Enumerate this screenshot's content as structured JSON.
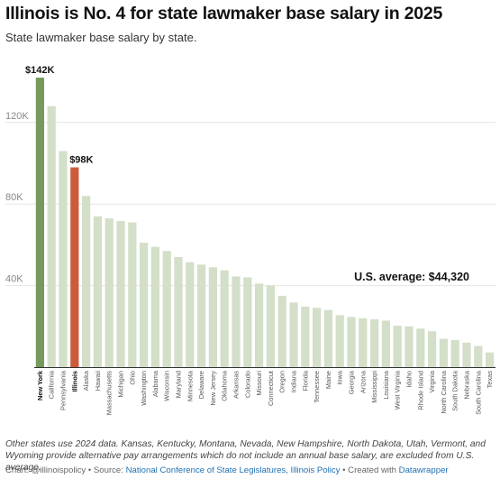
{
  "header": {
    "title": "Illinois is No. 4 for state lawmaker base salary in 2025",
    "subtitle": "State lawmaker base salary by state."
  },
  "footer": {
    "note": "Other states use 2024 data. Kansas, Kentucky, Montana, Nevada, New Hampshire, North Dakota, Utah, Vermont, and Wyoming provide alternative pay arrangements which do not include an annual base salary, are excluded from U.S. average.",
    "credit_prefix": "Chart: @illinoispolicy • Source: ",
    "source_link": "National Conference of State Legislatures, Illinois Policy",
    "credit_mid": " • Created with ",
    "tool_link": "Datawrapper"
  },
  "colors": {
    "bar_default": "#d3dfc8",
    "bar_top": "#76995c",
    "bar_illinois": "#cc5b3b",
    "grid": "#e5e5e5",
    "axis": "#333333"
  },
  "chart_data": {
    "type": "bar",
    "title": "Illinois is No. 4 for state lawmaker base salary in 2025",
    "subtitle": "State lawmaker base salary by state.",
    "xlabel": "",
    "ylabel": "",
    "ylim": [
      0,
      150000
    ],
    "yticks": [
      40000,
      80000,
      120000
    ],
    "ytick_labels": [
      "40K",
      "80K",
      "120K"
    ],
    "grid": true,
    "categories": [
      "New York",
      "California",
      "Pennsylvania",
      "Illinois",
      "Alaska",
      "Hawaii",
      "Massachusetts",
      "Michigan",
      "Ohio",
      "Washington",
      "Alabama",
      "Wisconsin",
      "Maryland",
      "Minnesota",
      "Delaware",
      "New Jersey",
      "Oklahoma",
      "Arkansas",
      "Colorado",
      "Missouri",
      "Connecticut",
      "Oregon",
      "Indiana",
      "Florida",
      "Tennessee",
      "Maine",
      "Iowa",
      "Georgia",
      "Arizona",
      "Mississippi",
      "Louisiana",
      "West Virginia",
      "Idaho",
      "Rhode Island",
      "Virginia",
      "North Carolina",
      "South Dakota",
      "Nebraska",
      "South Carolina",
      "Texas"
    ],
    "values": [
      142000,
      128000,
      106000,
      98000,
      84000,
      74000,
      73000,
      71700,
      71000,
      61000,
      59000,
      57000,
      54000,
      51500,
      50300,
      49000,
      47500,
      44500,
      44000,
      41000,
      40000,
      35000,
      31700,
      29700,
      29100,
      28000,
      25500,
      24600,
      24000,
      23500,
      22800,
      20300,
      20000,
      18900,
      17600,
      13900,
      13300,
      12000,
      10400,
      7200
    ],
    "highlight": {
      "top": "New York",
      "illinois": "Illinois"
    },
    "value_labels": [
      {
        "category": "New York",
        "text": "$142K"
      },
      {
        "category": "Illinois",
        "text": "$98K"
      }
    ],
    "annotation": {
      "text": "U.S. average: $44,320",
      "value": 44320
    }
  }
}
